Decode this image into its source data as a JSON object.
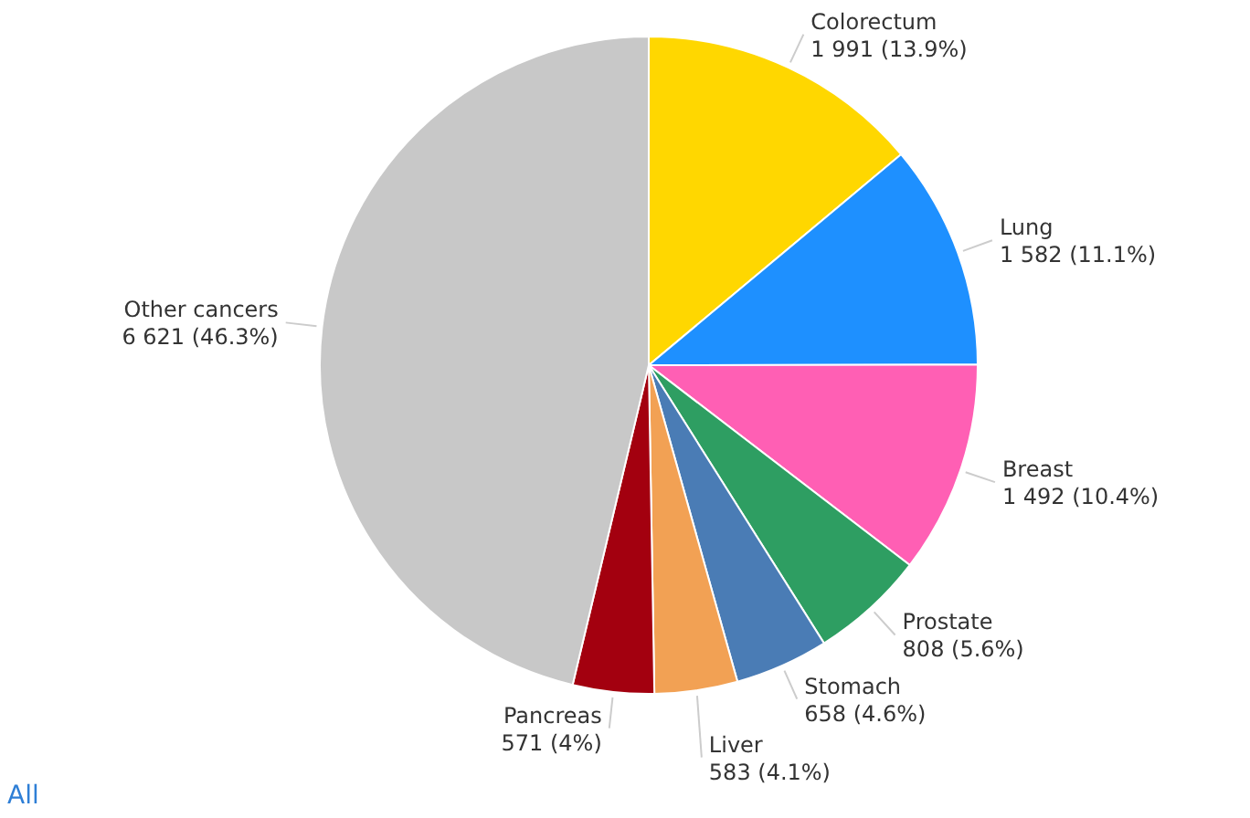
{
  "chart_data": {
    "type": "pie",
    "categories": [
      "Colorectum",
      "Lung",
      "Breast",
      "Prostate",
      "Stomach",
      "Liver",
      "Pancreas",
      "Other cancers"
    ],
    "values": [
      1991,
      1582,
      1492,
      808,
      658,
      583,
      571,
      6621
    ],
    "value_labels": [
      "1 991 (13.9%)",
      "1 582 (11.1%)",
      "1 492 (10.4%)",
      "808 (5.6%)",
      "658 (4.6%)",
      "583 (4.1%)",
      "571 (4%)",
      "6 621 (46.3%)"
    ],
    "colors": [
      "#ffd700",
      "#1e90ff",
      "#ff5fb4",
      "#2e9e62",
      "#4a7cb5",
      "#f2a154",
      "#a3000f",
      "#c8c8c8"
    ],
    "annotations": [
      "All"
    ]
  }
}
